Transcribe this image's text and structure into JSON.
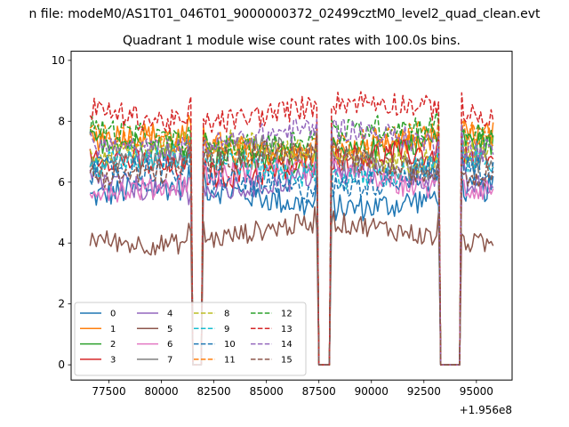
{
  "chart_data": {
    "type": "line",
    "suptitle": "n file: modeM0/AS1T01_046T01_9000000372_02499cztM0_level2_quad_clean.evt",
    "title": "Quadrant 1 module wise count rates with 100.0s bins.",
    "xlabel": "",
    "ylabel": "",
    "x_offset_text": "+1.956e8",
    "xlim": [
      75700,
      96700
    ],
    "ylim": [
      -0.5,
      10.3
    ],
    "x_ticks": [
      77500,
      80000,
      82500,
      85000,
      87500,
      90000,
      92500,
      95000
    ],
    "x_tick_labels": [
      "77500",
      "80000",
      "82500",
      "85000",
      "87500",
      "90000",
      "92500",
      "95000"
    ],
    "y_ticks": [
      0,
      2,
      4,
      6,
      8,
      10
    ],
    "y_tick_labels": [
      "0",
      "2",
      "4",
      "6",
      "8",
      "10"
    ],
    "grid": false,
    "legend_position": "lower-left",
    "legend_columns": 4,
    "x_range_data": [
      76600,
      95800
    ],
    "bin_seconds": 100,
    "gaps": [
      {
        "start": 81450,
        "end": 81900
      },
      {
        "start": 87450,
        "end": 88000
      },
      {
        "start": 93300,
        "end": 94250
      }
    ],
    "series": [
      {
        "name": "0",
        "color": "#1f77b4",
        "dash": "solid",
        "level": 5.5,
        "variation": 0.45
      },
      {
        "name": "1",
        "color": "#ff7f0e",
        "dash": "solid",
        "level": 7.2,
        "variation": 0.45
      },
      {
        "name": "2",
        "color": "#2ca02c",
        "dash": "solid",
        "level": 7.0,
        "variation": 0.4
      },
      {
        "name": "3",
        "color": "#d62728",
        "dash": "solid",
        "level": 6.6,
        "variation": 0.45
      },
      {
        "name": "4",
        "color": "#9467bd",
        "dash": "solid",
        "level": 6.0,
        "variation": 0.4
      },
      {
        "name": "5",
        "color": "#8c564b",
        "dash": "solid",
        "level": 4.3,
        "variation": 0.35
      },
      {
        "name": "6",
        "color": "#e377c2",
        "dash": "solid",
        "level": 6.1,
        "variation": 0.4
      },
      {
        "name": "7",
        "color": "#7f7f7f",
        "dash": "solid",
        "level": 6.8,
        "variation": 0.4
      },
      {
        "name": "8",
        "color": "#bcbd22",
        "dash": "dashed",
        "level": 7.0,
        "variation": 0.4
      },
      {
        "name": "9",
        "color": "#17becf",
        "dash": "dashed",
        "level": 6.5,
        "variation": 0.45
      },
      {
        "name": "10",
        "color": "#1f77b4",
        "dash": "dashed",
        "level": 6.1,
        "variation": 0.45
      },
      {
        "name": "11",
        "color": "#ff7f0e",
        "dash": "dashed",
        "level": 7.3,
        "variation": 0.4
      },
      {
        "name": "12",
        "color": "#2ca02c",
        "dash": "dashed",
        "level": 7.5,
        "variation": 0.4
      },
      {
        "name": "13",
        "color": "#d62728",
        "dash": "dashed",
        "level": 8.3,
        "variation": 0.4
      },
      {
        "name": "14",
        "color": "#9467bd",
        "dash": "dashed",
        "level": 7.4,
        "variation": 0.4
      },
      {
        "name": "15",
        "color": "#8c564b",
        "dash": "dashed",
        "level": 6.6,
        "variation": 0.45
      }
    ]
  }
}
